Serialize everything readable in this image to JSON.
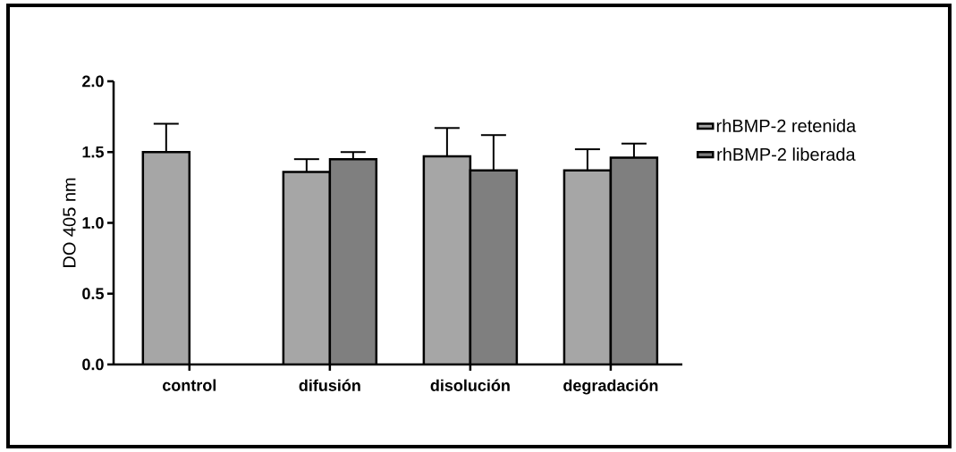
{
  "chart_data": {
    "type": "bar",
    "ylabel": "DO 405 nm",
    "categories": [
      "control",
      "difusión",
      "disolución",
      "degradación"
    ],
    "series": [
      {
        "name": "rhBMP-2 retenida",
        "color": "#a6a6a6",
        "values": [
          1.5,
          1.36,
          1.47,
          1.37
        ],
        "errors": [
          0.2,
          0.09,
          0.2,
          0.15
        ]
      },
      {
        "name": "rhBMP-2 liberada",
        "color": "#7f7f7f",
        "values": [
          null,
          1.45,
          1.37,
          1.46
        ],
        "errors": [
          null,
          0.05,
          0.25,
          0.1
        ]
      }
    ],
    "ylim": [
      0,
      2
    ],
    "yticks": [
      {
        "value": 0,
        "label": "0.0"
      },
      0.5,
      {
        "value": 1,
        "label": "1.0"
      },
      1.5,
      {
        "value": 2,
        "label": "2.0"
      }
    ],
    "legend": "right",
    "grid": false
  }
}
